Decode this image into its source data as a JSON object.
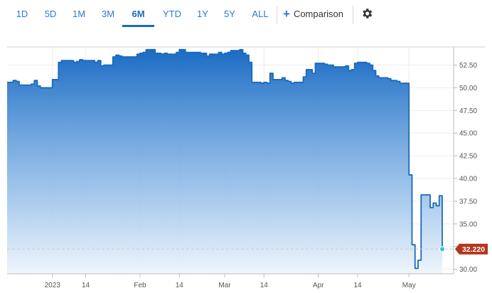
{
  "toolbar": {
    "ranges": [
      "1D",
      "5D",
      "1M",
      "3M",
      "6M",
      "YTD",
      "1Y",
      "5Y",
      "ALL"
    ],
    "active_range": "6M",
    "comparison_label": "Comparison",
    "settings_icon": "gear-icon",
    "accent_color": "#1a6bb8"
  },
  "chart_data": {
    "type": "area",
    "x_tick_labels": [
      "2023",
      "14",
      "Feb",
      "14",
      "Mar",
      "14",
      "Apr",
      "14",
      "May"
    ],
    "y_tick_labels": [
      "30.00",
      "32.50",
      "35.00",
      "37.50",
      "40.00",
      "42.50",
      "45.00",
      "47.50",
      "50.00",
      "52.50"
    ],
    "ylim": [
      29.5,
      54.5
    ],
    "last_value_label": "32.220",
    "last_value": 32.22,
    "line_color": "#1a6bb8",
    "marker_color": "#2fc4e8",
    "badge_color": "#b5341c",
    "grid": true,
    "x": [
      "2022-12-19",
      "2022-12-20",
      "2022-12-21",
      "2022-12-22",
      "2022-12-23",
      "2022-12-27",
      "2022-12-28",
      "2022-12-29",
      "2022-12-30",
      "2023-01-03",
      "2023-01-04",
      "2023-01-05",
      "2023-01-06",
      "2023-01-09",
      "2023-01-10",
      "2023-01-11",
      "2023-01-12",
      "2023-01-13",
      "2023-01-17",
      "2023-01-18",
      "2023-01-19",
      "2023-01-20",
      "2023-01-23",
      "2023-01-24",
      "2023-01-25",
      "2023-01-26",
      "2023-01-27",
      "2023-01-30",
      "2023-01-31",
      "2023-02-01",
      "2023-02-02",
      "2023-02-03",
      "2023-02-06",
      "2023-02-07",
      "2023-02-08",
      "2023-02-09",
      "2023-02-10",
      "2023-02-13",
      "2023-02-14",
      "2023-02-15",
      "2023-02-16",
      "2023-02-17",
      "2023-02-21",
      "2023-02-22",
      "2023-02-23",
      "2023-02-24",
      "2023-02-27",
      "2023-02-28",
      "2023-03-01",
      "2023-03-02",
      "2023-03-03",
      "2023-03-06",
      "2023-03-07",
      "2023-03-08",
      "2023-03-09",
      "2023-03-10",
      "2023-03-13",
      "2023-03-14",
      "2023-03-15",
      "2023-03-16",
      "2023-03-17",
      "2023-03-20",
      "2023-03-21",
      "2023-03-22",
      "2023-03-23",
      "2023-03-24",
      "2023-03-27",
      "2023-03-28",
      "2023-03-29",
      "2023-03-30",
      "2023-03-31",
      "2023-04-03",
      "2023-04-04",
      "2023-04-05",
      "2023-04-06",
      "2023-04-10",
      "2023-04-11",
      "2023-04-12",
      "2023-04-13",
      "2023-04-14",
      "2023-04-17",
      "2023-04-18",
      "2023-04-19",
      "2023-04-20",
      "2023-04-21",
      "2023-04-24",
      "2023-04-25",
      "2023-04-26",
      "2023-04-27",
      "2023-04-28",
      "2023-05-01",
      "2023-05-02",
      "2023-05-03",
      "2023-05-04",
      "2023-05-05",
      "2023-05-08",
      "2023-05-09",
      "2023-05-10",
      "2023-05-11",
      "2023-05-12"
    ],
    "y": [
      50.6,
      50.6,
      50.8,
      50.7,
      50.3,
      50.4,
      50.8,
      50.2,
      50.0,
      50.9,
      50.9,
      52.8,
      53.0,
      53.0,
      52.8,
      52.9,
      53.1,
      53.0,
      52.8,
      53.0,
      52.4,
      52.5,
      53.4,
      53.6,
      53.5,
      53.4,
      53.4,
      53.4,
      53.7,
      53.8,
      53.9,
      54.2,
      53.8,
      53.8,
      53.7,
      53.8,
      53.7,
      53.9,
      54.2,
      54.2,
      53.9,
      53.9,
      53.8,
      53.8,
      53.5,
      53.7,
      53.9,
      53.7,
      53.8,
      53.9,
      54.1,
      54.2,
      53.8,
      53.6,
      52.8,
      50.6,
      50.5,
      50.6,
      50.5,
      51.6,
      50.9,
      51.1,
      50.8,
      50.7,
      50.5,
      50.6,
      51.2,
      52.0,
      52.0,
      51.6,
      52.7,
      52.6,
      52.5,
      52.5,
      52.3,
      52.4,
      51.9,
      52.0,
      52.7,
      52.8,
      52.7,
      52.5,
      51.9,
      51.3,
      51.1,
      51.0,
      50.8,
      50.8,
      50.7,
      50.5,
      40.4,
      32.7,
      30.1,
      31.0,
      38.2,
      36.8,
      37.3,
      37.0,
      38.1,
      32.22
    ]
  }
}
